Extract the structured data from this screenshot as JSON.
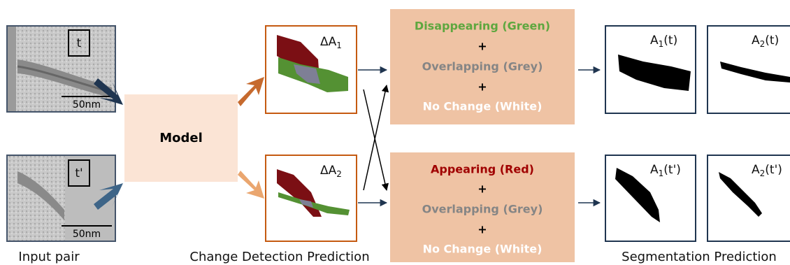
{
  "inputs": [
    {
      "label": "t",
      "scale": "50nm"
    },
    {
      "label": "t'",
      "scale": "50nm"
    }
  ],
  "model": "Model",
  "change_maps": [
    {
      "main": "ΔA",
      "sub": "1"
    },
    {
      "main": "ΔA",
      "sub": "2"
    }
  ],
  "legends": [
    {
      "lines": [
        "Disappearing (Green)",
        "+",
        "Overlapping (Grey)",
        "+",
        "No Change (White)"
      ]
    },
    {
      "lines": [
        "Appearing (Red)",
        "+",
        "Overlapping (Grey)",
        "+",
        "No Change (White)"
      ]
    }
  ],
  "segmentations": [
    {
      "main": "A",
      "sub": "1",
      "suffix": "(t)"
    },
    {
      "main": "A",
      "sub": "2",
      "suffix": "(t)"
    },
    {
      "main": "A",
      "sub": "1",
      "suffix": "(t')"
    },
    {
      "main": "A",
      "sub": "2",
      "suffix": "(t')"
    }
  ],
  "captions": [
    "Input pair",
    "Change Detection Prediction",
    "Segmentation Prediction"
  ]
}
